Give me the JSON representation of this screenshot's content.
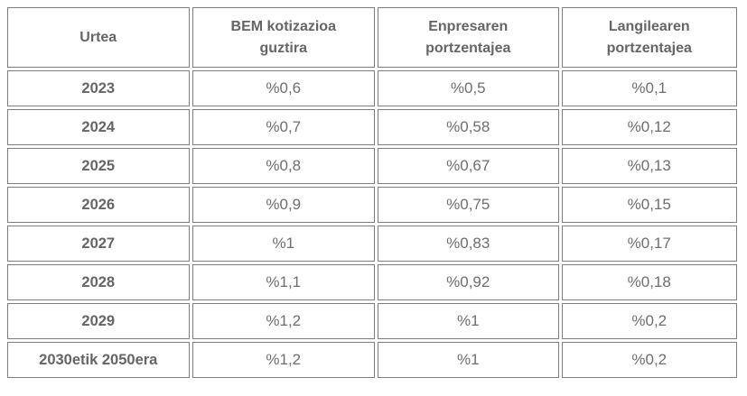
{
  "table": {
    "columns": [
      {
        "label": "Urtea"
      },
      {
        "label": "BEM kotizazioa guztira"
      },
      {
        "label": "Enpresaren portzentajea"
      },
      {
        "label": "Langilearen portzentajea"
      }
    ],
    "rows": [
      {
        "year": "2023",
        "total": "%0,6",
        "company": "%0,5",
        "worker": "%0,1"
      },
      {
        "year": "2024",
        "total": "%0,7",
        "company": "%0,58",
        "worker": "%0,12"
      },
      {
        "year": "2025",
        "total": "%0,8",
        "company": "%0,67",
        "worker": "%0,13"
      },
      {
        "year": "2026",
        "total": "%0,9",
        "company": "%0,75",
        "worker": "%0,15"
      },
      {
        "year": "2027",
        "total": "%1",
        "company": "%0,83",
        "worker": "%0,17"
      },
      {
        "year": "2028",
        "total": "%1,1",
        "company": "%0,92",
        "worker": "%0,18"
      },
      {
        "year": "2029",
        "total": "%1,2",
        "company": "%1",
        "worker": "%0,2"
      },
      {
        "year": "2030etik 2050era",
        "total": "%1,2",
        "company": "%1",
        "worker": "%0,2"
      }
    ]
  },
  "colors": {
    "border": "#7d7d7d",
    "header_text": "#656565",
    "cell_text": "#6e6e6e",
    "background": "#ffffff"
  }
}
